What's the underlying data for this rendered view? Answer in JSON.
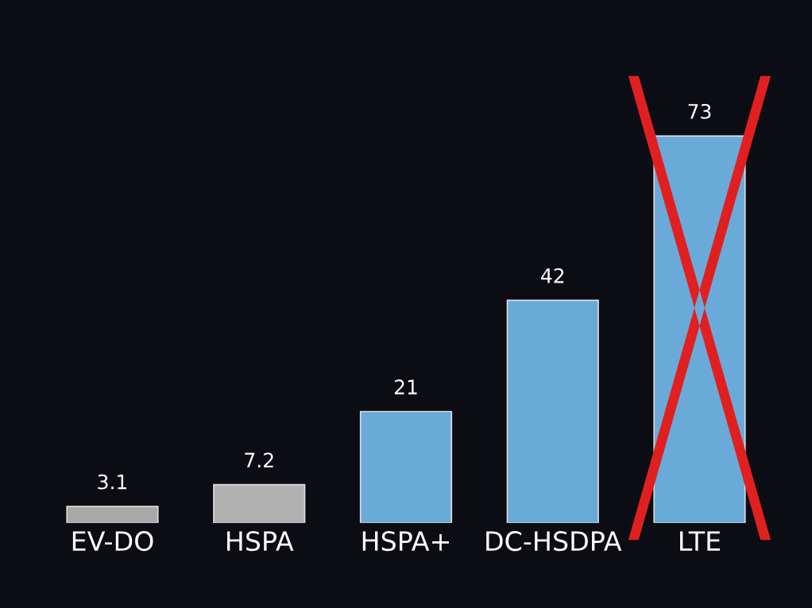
{
  "chart_data": {
    "type": "bar",
    "categories": [
      "EV-DO",
      "HSPA",
      "HSPA+",
      "DC-HSDPA",
      "LTE"
    ],
    "values": [
      3.1,
      7.2,
      21,
      42,
      73
    ],
    "colors": [
      "#a8a8a8",
      "#b0b0b0",
      "#6aaad8",
      "#6aaad8",
      "#6aaad8"
    ],
    "data_labels": true,
    "tick_labels": "x",
    "grid": false,
    "legend": false
  }
}
